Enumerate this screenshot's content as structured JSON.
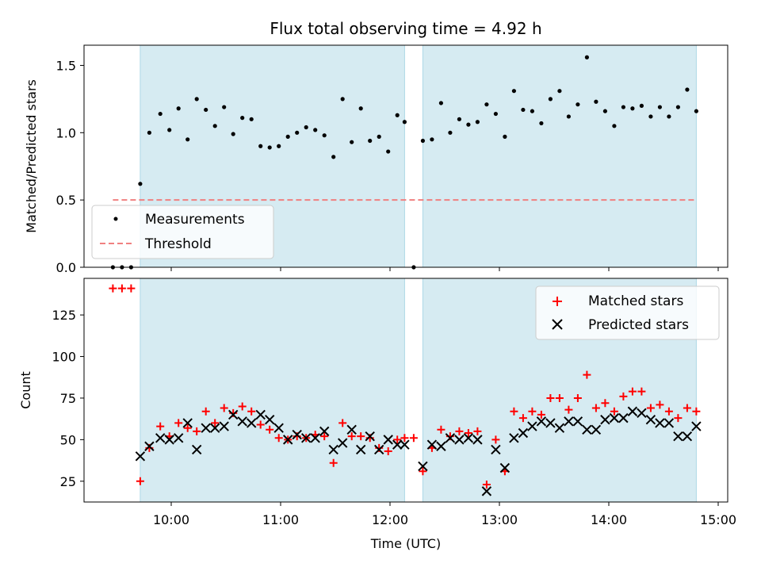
{
  "chart_data": [
    {
      "type": "scatter",
      "title": "Flux total observing time = 4.92 h",
      "ylabel": "Matched/Predicted stars",
      "xlabel": "",
      "ylim": [
        0,
        1.65
      ],
      "yticks": [
        "0.0",
        "0.5",
        "1.0",
        "1.5"
      ],
      "legend_position": "lower-left",
      "shaded_intervals": [
        [
          "09:43",
          "12:08"
        ],
        [
          "12:18",
          "14:48"
        ]
      ],
      "threshold": {
        "name": "Threshold",
        "value": 0.5,
        "x_range": [
          "09:28",
          "14:48"
        ],
        "color": "#f08080"
      },
      "series": [
        {
          "name": "Measurements",
          "color": "#000000",
          "x": [
            "09:28",
            "09:33",
            "09:38",
            "09:43",
            "09:48",
            "09:54",
            "09:59",
            "10:04",
            "10:09",
            "10:14",
            "10:19",
            "10:24",
            "10:29",
            "10:34",
            "10:39",
            "10:44",
            "10:49",
            "10:54",
            "10:59",
            "11:04",
            "11:09",
            "11:14",
            "11:19",
            "11:24",
            "11:29",
            "11:34",
            "11:39",
            "11:44",
            "11:49",
            "11:54",
            "11:59",
            "12:04",
            "12:08",
            "12:13",
            "12:18",
            "12:23",
            "12:28",
            "12:33",
            "12:38",
            "12:43",
            "12:48",
            "12:53",
            "12:58",
            "13:03",
            "13:08",
            "13:13",
            "13:18",
            "13:23",
            "13:28",
            "13:33",
            "13:38",
            "13:43",
            "13:48",
            "13:53",
            "13:58",
            "14:03",
            "14:08",
            "14:13",
            "14:18",
            "14:23",
            "14:28",
            "14:33",
            "14:38",
            "14:43",
            "14:48"
          ],
          "values": [
            0.0,
            0.0,
            0.0,
            0.62,
            1.0,
            1.14,
            1.02,
            1.18,
            0.95,
            1.25,
            1.17,
            1.05,
            1.19,
            0.99,
            1.11,
            1.1,
            0.9,
            0.89,
            0.9,
            0.97,
            1.0,
            1.04,
            1.02,
            0.98,
            0.82,
            1.25,
            0.93,
            1.18,
            0.94,
            0.97,
            0.86,
            1.13,
            1.08,
            0.0,
            0.94,
            0.95,
            1.22,
            1.0,
            1.1,
            1.06,
            1.08,
            1.21,
            1.14,
            0.97,
            1.31,
            1.17,
            1.16,
            1.07,
            1.25,
            1.31,
            1.12,
            1.21,
            1.56,
            1.23,
            1.16,
            1.05,
            1.19,
            1.18,
            1.2,
            1.12,
            1.19,
            1.12,
            1.19,
            1.32,
            1.16
          ]
        }
      ]
    },
    {
      "type": "scatter",
      "title": "",
      "ylabel": "Count",
      "xlabel": "Time (UTC)",
      "ylim": [
        12.5,
        147
      ],
      "yticks": [
        "25",
        "50",
        "75",
        "100",
        "125"
      ],
      "xticks": [
        "10:00",
        "11:00",
        "12:00",
        "13:00",
        "14:00",
        "15:00"
      ],
      "legend_position": "upper-right",
      "shaded_intervals": [
        [
          "09:43",
          "12:08"
        ],
        [
          "12:18",
          "14:48"
        ]
      ],
      "series": [
        {
          "name": "Matched stars",
          "color": "#ff0000",
          "marker": "plus",
          "x": [
            "09:28",
            "09:33",
            "09:38",
            "09:43",
            "09:48",
            "09:54",
            "09:59",
            "10:04",
            "10:09",
            "10:14",
            "10:19",
            "10:24",
            "10:29",
            "10:34",
            "10:39",
            "10:44",
            "10:49",
            "10:54",
            "10:59",
            "11:04",
            "11:09",
            "11:14",
            "11:19",
            "11:24",
            "11:29",
            "11:34",
            "11:39",
            "11:44",
            "11:49",
            "11:54",
            "11:59",
            "12:04",
            "12:08",
            "12:13",
            "12:18",
            "12:23",
            "12:28",
            "12:33",
            "12:38",
            "12:43",
            "12:48",
            "12:53",
            "12:58",
            "13:03",
            "13:08",
            "13:13",
            "13:18",
            "13:23",
            "13:28",
            "13:33",
            "13:38",
            "13:43",
            "13:48",
            "13:53",
            "13:58",
            "14:03",
            "14:08",
            "14:13",
            "14:18",
            "14:23",
            "14:28",
            "14:33",
            "14:38",
            "14:43",
            "14:48"
          ],
          "values": [
            141,
            141,
            141,
            25,
            45,
            58,
            52,
            60,
            57,
            55,
            67,
            60,
            69,
            66,
            70,
            67,
            59,
            56,
            51,
            50,
            52,
            51,
            53,
            52,
            36,
            60,
            52,
            52,
            51,
            45,
            43,
            50,
            51,
            51,
            31,
            45,
            56,
            52,
            55,
            54,
            55,
            23,
            50,
            31,
            67,
            63,
            67,
            65,
            75,
            75,
            68,
            75,
            89,
            69,
            72,
            67,
            76,
            79,
            79,
            69,
            71,
            67,
            63,
            69,
            67
          ]
        },
        {
          "name": "Predicted stars",
          "color": "#000000",
          "marker": "x",
          "x": [
            "09:43",
            "09:48",
            "09:54",
            "09:59",
            "10:04",
            "10:09",
            "10:14",
            "10:19",
            "10:24",
            "10:29",
            "10:34",
            "10:39",
            "10:44",
            "10:49",
            "10:54",
            "10:59",
            "11:04",
            "11:09",
            "11:14",
            "11:19",
            "11:24",
            "11:29",
            "11:34",
            "11:39",
            "11:44",
            "11:49",
            "11:54",
            "11:59",
            "12:04",
            "12:08",
            "12:18",
            "12:23",
            "12:28",
            "12:33",
            "12:38",
            "12:43",
            "12:48",
            "12:53",
            "12:58",
            "13:03",
            "13:08",
            "13:13",
            "13:18",
            "13:23",
            "13:28",
            "13:33",
            "13:38",
            "13:43",
            "13:48",
            "13:53",
            "13:58",
            "14:03",
            "14:08",
            "14:13",
            "14:18",
            "14:23",
            "14:28",
            "14:33",
            "14:38",
            "14:43",
            "14:48"
          ],
          "values": [
            40,
            46,
            51,
            50,
            51,
            60,
            44,
            57,
            57,
            58,
            65,
            61,
            60,
            65,
            62,
            57,
            50,
            53,
            51,
            51,
            55,
            44,
            48,
            56,
            44,
            52,
            44,
            50,
            47,
            47,
            34,
            47,
            46,
            51,
            50,
            51,
            50,
            19,
            44,
            33,
            51,
            54,
            58,
            61,
            60,
            57,
            61,
            61,
            56,
            56,
            62,
            63,
            63,
            67,
            66,
            62,
            60,
            60,
            52,
            52,
            58
          ]
        }
      ]
    }
  ]
}
